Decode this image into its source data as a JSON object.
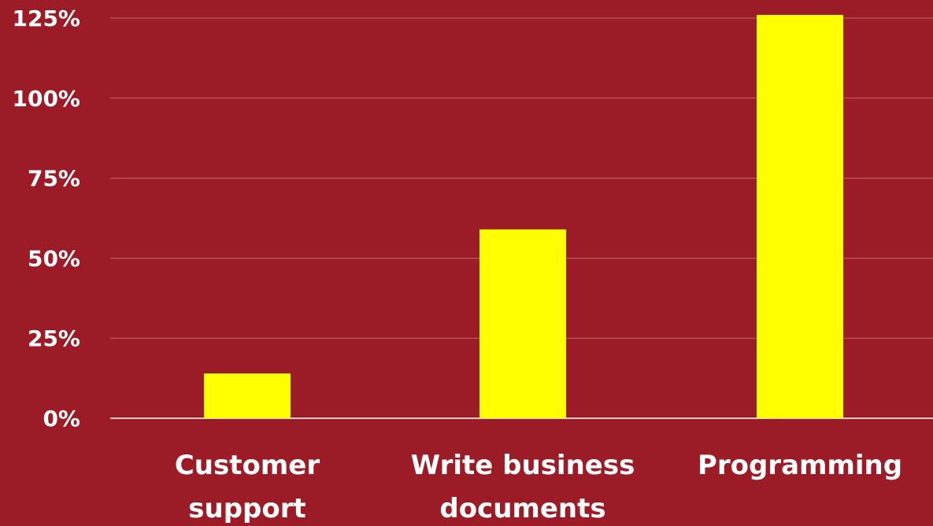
{
  "colors": {
    "background": "#9b1c26",
    "bar": "#ffff00",
    "grid": "#c4656c",
    "axis": "#e7c9cb",
    "text": "#ffffff"
  },
  "chart_data": {
    "type": "bar",
    "categories": [
      "Customer support",
      "Write business documents",
      "Programming"
    ],
    "category_lines": [
      [
        "Customer",
        "support"
      ],
      [
        "Write business",
        "documents"
      ],
      [
        "Programming"
      ]
    ],
    "values": [
      14,
      59,
      126
    ],
    "ylim": [
      0,
      125
    ],
    "yticks": [
      0,
      25,
      50,
      75,
      100,
      125
    ],
    "ytick_labels": [
      "0%",
      "25%",
      "50%",
      "75%",
      "100%",
      "125%"
    ],
    "grid": true,
    "legend": "none"
  }
}
